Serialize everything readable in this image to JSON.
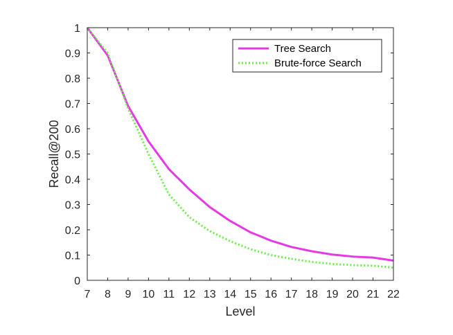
{
  "chart_data": {
    "type": "line",
    "title": "",
    "xlabel": "Level",
    "ylabel": "Recall@200",
    "xlim": [
      7,
      22
    ],
    "ylim": [
      0,
      1
    ],
    "xticks": [
      7,
      8,
      9,
      10,
      11,
      12,
      13,
      14,
      15,
      16,
      17,
      18,
      19,
      20,
      21,
      22
    ],
    "yticks": [
      0,
      0.1,
      0.2,
      0.3,
      0.4,
      0.5,
      0.6,
      0.7,
      0.8,
      0.9,
      1
    ],
    "ytick_labels": [
      "0",
      "0.1",
      "0.2",
      "0.3",
      "0.4",
      "0.5",
      "0.6",
      "0.7",
      "0.8",
      "0.9",
      "1"
    ],
    "grid": false,
    "legend": "top-right",
    "x": [
      7,
      8,
      9,
      10,
      11,
      12,
      13,
      14,
      15,
      16,
      17,
      18,
      19,
      20,
      21,
      22
    ],
    "series": [
      {
        "name": "Tree Search",
        "color": "#e639e6",
        "style": "solid",
        "values": [
          1.0,
          0.89,
          0.69,
          0.55,
          0.44,
          0.36,
          0.29,
          0.235,
          0.19,
          0.157,
          0.132,
          0.115,
          0.102,
          0.094,
          0.09,
          0.078
        ]
      },
      {
        "name": "Brute-force Search",
        "color": "#66ee44",
        "style": "dotted",
        "values": [
          1.0,
          0.9,
          0.68,
          0.5,
          0.34,
          0.25,
          0.195,
          0.155,
          0.123,
          0.1,
          0.085,
          0.073,
          0.065,
          0.06,
          0.058,
          0.05
        ]
      }
    ]
  }
}
